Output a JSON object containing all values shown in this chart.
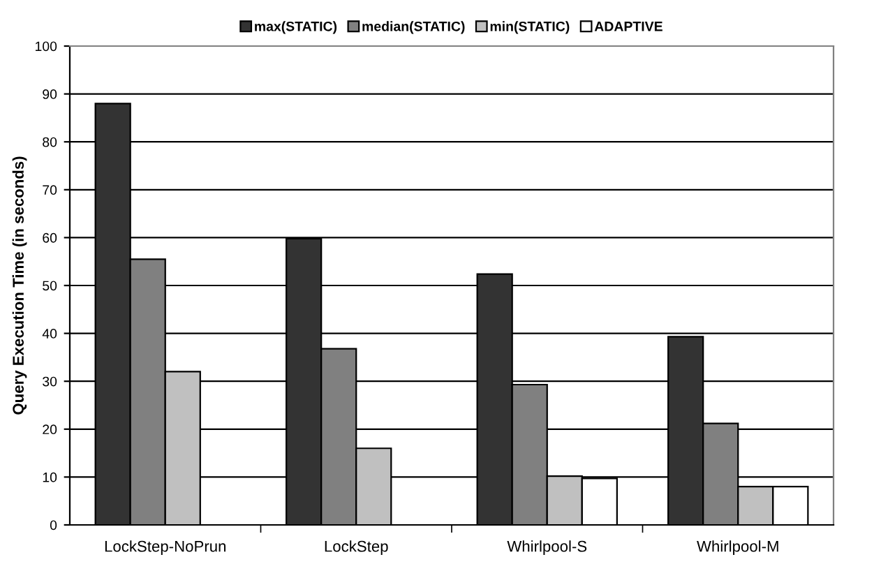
{
  "chart_data": {
    "type": "bar",
    "ylabel": "Query Execution Time (in seconds)",
    "categories": [
      "LockStep-NoPrun",
      "LockStep",
      "Whirlpool-S",
      "Whirlpool-M"
    ],
    "series": [
      {
        "name": "max(STATIC)",
        "color": "#333333",
        "values": [
          88,
          59.8,
          52.4,
          39.3
        ]
      },
      {
        "name": "median(STATIC)",
        "color": "#808080",
        "values": [
          55.5,
          36.8,
          29.3,
          21.2
        ]
      },
      {
        "name": "min(STATIC)",
        "color": "#c0c0c0",
        "values": [
          32,
          16,
          10.2,
          8
        ]
      },
      {
        "name": "ADAPTIVE",
        "color": "#ffffff",
        "values": [
          null,
          null,
          9.7,
          8
        ]
      }
    ],
    "ylim": [
      0,
      100
    ],
    "yticks": [
      0,
      10,
      20,
      30,
      40,
      50,
      60,
      70,
      80,
      90,
      100
    ],
    "grid": "y",
    "legend": "top"
  }
}
